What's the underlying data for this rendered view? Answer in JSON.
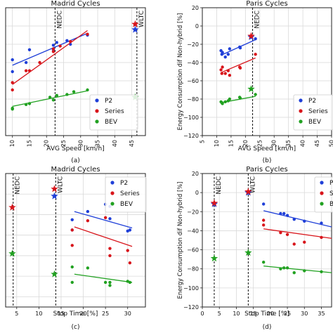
{
  "panels": [
    {
      "id": "a",
      "title": "Madrid Cycles",
      "caption": "(a)",
      "xlabel": "AVG Speed [km/h]",
      "ylabel": "",
      "xticks": [
        "10",
        "15",
        "20",
        "25",
        "30",
        "35",
        "40",
        "45",
        "50"
      ],
      "yticks": [],
      "legend": [
        "P2",
        "Series",
        "BEV"
      ],
      "vlines": [
        {
          "label": "NEDC"
        },
        {
          "label": "WLTC"
        }
      ]
    },
    {
      "id": "b",
      "title": "Paris Cycles",
      "caption": "(b)",
      "xlabel": "AVG Speed [km/h]",
      "ylabel": "Energy Consumption dif Non-hybrid [%]",
      "xticks": [
        "5",
        "10",
        "15",
        "20",
        "25",
        "30",
        "35",
        "40",
        "45",
        "50"
      ],
      "yticks": [
        "20",
        "0",
        "−20",
        "−40",
        "−60",
        "−80",
        "−100",
        "−120"
      ],
      "legend": [
        "P2",
        "Series",
        "BEV"
      ],
      "vlines": [
        {
          "label": "NEDC"
        }
      ]
    },
    {
      "id": "c",
      "title": "Madrid Cycles",
      "caption": "(c)",
      "xlabel": "Stop Time [%]",
      "ylabel": "",
      "xticks": [
        "5",
        "10",
        "15",
        "20",
        "25",
        "30",
        "35"
      ],
      "yticks": [],
      "legend": [
        "P2",
        "Series",
        "BEV"
      ],
      "vlines": [
        {
          "label": "NEDC"
        },
        {
          "label": "WLTC"
        }
      ]
    },
    {
      "id": "d",
      "title": "Paris Cycles",
      "caption": "(d)",
      "xlabel": "Stop Time [%]",
      "ylabel": "Energy Consumption dif Non-hybrid [%]",
      "xticks": [
        "0",
        "5",
        "10",
        "15",
        "20",
        "25",
        "30",
        "35"
      ],
      "yticks": [
        "20",
        "0",
        "−20",
        "−40",
        "−60",
        "−80",
        "−100",
        "−120"
      ],
      "legend": [
        "P",
        "S",
        "B"
      ],
      "vlines": [
        {
          "label": "NEDC"
        },
        {
          "label": "WLTC"
        }
      ]
    }
  ],
  "chart_data": [
    {
      "type": "scatter",
      "panel": "a",
      "title": "Madrid Cycles",
      "xlabel": "AVG Speed [km/h]",
      "ylabel": "",
      "xlim": [
        8,
        49
      ],
      "ylim": [
        -120,
        20
      ],
      "grid": true,
      "legend_position": "right",
      "colors": {
        "P2": "#1f3fd8",
        "Series": "#d8151b",
        "BEV": "#21a121"
      },
      "vlines": [
        {
          "x": 22.5,
          "label": "NEDC"
        },
        {
          "x": 46.5,
          "label": "WLTC"
        }
      ],
      "series": [
        {
          "name": "P2",
          "points": [
            [
              10,
              -37
            ],
            [
              10,
              -50
            ],
            [
              14,
              -40
            ],
            [
              15,
              -26
            ],
            [
              22,
              -26
            ],
            [
              22,
              -21
            ],
            [
              23,
              -18
            ],
            [
              26,
              -16
            ],
            [
              27,
              -20
            ],
            [
              32,
              -10
            ]
          ],
          "fit": [
            [
              10,
              -43
            ],
            [
              32,
              -8
            ]
          ],
          "star": [
            46,
            -4
          ]
        },
        {
          "name": "Series",
          "points": [
            [
              10,
              -70
            ],
            [
              10,
              -62
            ],
            [
              14,
              -49
            ],
            [
              15,
              -49
            ],
            [
              18,
              -40
            ],
            [
              22,
              -28
            ],
            [
              22,
              -25
            ],
            [
              24,
              -22
            ],
            [
              27,
              -17
            ],
            [
              32,
              -9
            ]
          ],
          "fit": [
            [
              10,
              -64
            ],
            [
              32,
              -5
            ]
          ],
          "star": [
            46,
            2
          ]
        },
        {
          "name": "BEV",
          "points": [
            [
              10,
              -91
            ],
            [
              10,
              -90
            ],
            [
              14,
              -86
            ],
            [
              15,
              -85
            ],
            [
              21,
              -78
            ],
            [
              22,
              -81
            ],
            [
              23,
              -76
            ],
            [
              26,
              -75
            ],
            [
              28,
              -72
            ],
            [
              32,
              -70
            ]
          ],
          "fit": [
            [
              10,
              -88
            ],
            [
              32,
              -71
            ]
          ],
          "star": [
            46,
            -78
          ]
        }
      ]
    },
    {
      "type": "scatter",
      "panel": "b",
      "title": "Paris Cycles",
      "xlabel": "AVG Speed [km/h]",
      "ylabel": "Energy Consumption dif Non-hybrid [%]",
      "xlim": [
        5,
        50
      ],
      "ylim": [
        -120,
        20
      ],
      "grid": true,
      "legend_position": "right",
      "colors": {
        "P2": "#1f3fd8",
        "Series": "#d8151b",
        "BEV": "#21a121"
      },
      "vlines": [
        {
          "x": 22.5,
          "label": "NEDC"
        }
      ],
      "series": [
        {
          "name": "P2",
          "points": [
            [
              11.5,
              -27
            ],
            [
              11.8,
              -31
            ],
            [
              12,
              -29
            ],
            [
              13,
              -34
            ],
            [
              14,
              -31
            ],
            [
              14.5,
              -25
            ],
            [
              18,
              -23
            ],
            [
              18.2,
              -24
            ],
            [
              23.5,
              -14
            ]
          ],
          "fit": [
            [
              11.5,
              -32
            ],
            [
              23.5,
              -15
            ]
          ],
          "star": [
            22,
            -12
          ]
        },
        {
          "name": "Series",
          "points": [
            [
              11.5,
              -48
            ],
            [
              11.8,
              -52
            ],
            [
              12,
              -45
            ],
            [
              13,
              -52
            ],
            [
              14,
              -49
            ],
            [
              14.5,
              -54
            ],
            [
              18,
              -45
            ],
            [
              18.2,
              -46
            ],
            [
              23.5,
              -31
            ]
          ],
          "fit": [
            [
              11.5,
              -51
            ],
            [
              23.5,
              -35
            ]
          ],
          "star": [
            22,
            -11
          ]
        },
        {
          "name": "BEV",
          "points": [
            [
              11.5,
              -83
            ],
            [
              11.8,
              -84
            ],
            [
              12,
              -85
            ],
            [
              13,
              -83
            ],
            [
              14,
              -82
            ],
            [
              14.5,
              -80
            ],
            [
              18,
              -78
            ],
            [
              18.2,
              -79
            ],
            [
              23.5,
              -75
            ]
          ],
          "fit": [
            [
              11.5,
              -84
            ],
            [
              23.5,
              -77
            ]
          ],
          "star": [
            22,
            -69
          ]
        }
      ]
    },
    {
      "type": "scatter",
      "panel": "c",
      "title": "Madrid Cycles",
      "xlabel": "Stop Time [%]",
      "ylabel": "",
      "xlim": [
        2.5,
        34
      ],
      "ylim": [
        -110,
        20
      ],
      "grid": true,
      "legend_position": "top-right",
      "colors": {
        "P2": "#1f3fd8",
        "Series": "#d8151b",
        "BEV": "#21a121"
      },
      "vlines": [
        {
          "x": 4.2,
          "label": "NEDC"
        },
        {
          "x": 13.8,
          "label": "WLTC"
        }
      ],
      "series": [
        {
          "name": "P2",
          "points": [
            [
              17.5,
              -35
            ],
            [
              17.5,
              -25
            ],
            [
              21,
              -17
            ],
            [
              25,
              -10
            ],
            [
              26,
              -12
            ],
            [
              26,
              -24
            ],
            [
              30,
              -36
            ],
            [
              30.5,
              -35
            ]
          ],
          "fit": [
            [
              18,
              -17
            ],
            [
              31,
              -33
            ]
          ],
          "star": [
            13.5,
            -2
          ]
        },
        {
          "name": "Series",
          "points": [
            [
              17.5,
              -35
            ],
            [
              17.5,
              -50
            ],
            [
              21,
              -26
            ],
            [
              25,
              -23
            ],
            [
              26,
              -53
            ],
            [
              26,
              -60
            ],
            [
              30,
              -55
            ],
            [
              30.5,
              -67
            ]
          ],
          "fit": [
            [
              18,
              -32
            ],
            [
              31,
              -51
            ]
          ],
          "star": [
            13.5,
            5
          ]
        },
        {
          "name": "BEV",
          "points": [
            [
              17.5,
              -71
            ],
            [
              17.5,
              -86
            ],
            [
              21,
              -72
            ],
            [
              25,
              -86
            ],
            [
              26,
              -86
            ],
            [
              26,
              -89
            ],
            [
              30,
              -85
            ],
            [
              30.5,
              -86
            ]
          ],
          "fit": [
            [
              18,
              -78
            ],
            [
              31,
              -86
            ]
          ],
          "star": [
            13.5,
            -78
          ]
        },
        {
          "name": "",
          "points": [],
          "stars_only": true,
          "star_colors": [
            "#d8151b",
            "#21a121"
          ],
          "stars": [
            [
              4,
              -13
            ],
            [
              4,
              -58
            ]
          ]
        }
      ]
    },
    {
      "type": "scatter",
      "panel": "d",
      "title": "Paris Cycles",
      "xlabel": "Stop Time [%]",
      "ylabel": "Energy Consumption dif Non-hybrid [%]",
      "xlim": [
        0,
        38
      ],
      "ylim": [
        -120,
        20
      ],
      "grid": true,
      "legend_position": "top-right",
      "colors": {
        "P2": "#1f3fd8",
        "Series": "#d8151b",
        "BEV": "#21a121"
      },
      "vlines": [
        {
          "x": 3.5,
          "label": "NEDC"
        },
        {
          "x": 13.5,
          "label": "WLTC"
        }
      ],
      "series": [
        {
          "name": "P2",
          "points": [
            [
              18,
              -12
            ],
            [
              23,
              -22
            ],
            [
              24,
              -22
            ],
            [
              25,
              -24
            ],
            [
              27,
              -28
            ],
            [
              30,
              -30
            ],
            [
              35,
              -32
            ]
          ],
          "fit": [
            [
              18,
              -19
            ],
            [
              38,
              -36
            ]
          ],
          "star": [
            13.5,
            0
          ]
        },
        {
          "name": "Series",
          "points": [
            [
              18,
              -29
            ],
            [
              18,
              -34
            ],
            [
              23,
              -42
            ],
            [
              25,
              -44
            ],
            [
              27,
              -54
            ],
            [
              30,
              -52
            ],
            [
              35,
              -47
            ]
          ],
          "fit": [
            [
              18,
              -38
            ],
            [
              38,
              -48
            ]
          ],
          "star": [
            13.5,
            1
          ]
        },
        {
          "name": "BEV",
          "points": [
            [
              18,
              -73
            ],
            [
              23,
              -80
            ],
            [
              24,
              -79
            ],
            [
              25,
              -79
            ],
            [
              27,
              -84
            ],
            [
              30,
              -82
            ],
            [
              35,
              -83
            ]
          ],
          "fit": [
            [
              18,
              -77
            ],
            [
              38,
              -84
            ]
          ],
          "star": [
            13.5,
            -63
          ]
        },
        {
          "name": "",
          "points": [],
          "stars_only": true,
          "star_colors": [
            "#1f3fd8",
            "#d8151b",
            "#21a121"
          ],
          "stars": [
            [
              3.5,
              -12
            ],
            [
              3.5,
              -11
            ],
            [
              3.5,
              -69
            ]
          ]
        }
      ]
    }
  ]
}
